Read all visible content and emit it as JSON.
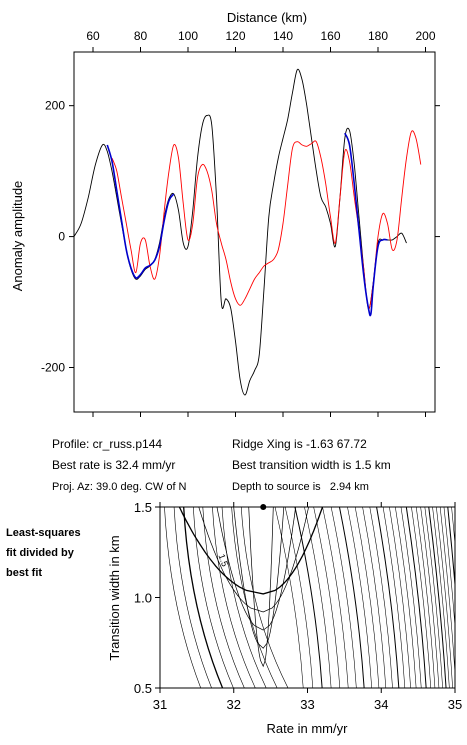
{
  "chart_data": [
    {
      "type": "line",
      "xlabel": "Distance (km)",
      "ylabel": "Anomaly amplitude",
      "xlim": [
        52,
        204
      ],
      "ylim": [
        -268,
        282
      ],
      "xticks": [
        60,
        80,
        100,
        120,
        140,
        160,
        180,
        200
      ],
      "yticks": [
        200,
        0,
        -200
      ],
      "grid": false,
      "series": [
        {
          "style": "observed",
          "color": "#000000",
          "x": [
            52,
            55,
            58,
            61,
            64,
            66,
            68,
            70,
            72,
            74,
            76,
            78,
            80,
            82,
            84,
            86,
            88,
            90,
            92,
            94,
            96,
            98,
            100,
            102,
            104,
            106,
            108,
            110,
            112,
            114,
            116,
            118,
            120,
            122,
            124,
            126,
            128,
            130,
            132,
            134,
            136,
            138,
            140,
            142,
            144,
            146,
            148,
            150,
            152,
            154,
            156,
            158,
            160,
            162,
            164,
            166,
            168,
            170,
            172,
            174,
            176,
            178,
            180,
            182,
            184,
            186,
            188,
            190,
            192
          ],
          "y": [
            0,
            20,
            60,
            110,
            140,
            130,
            100,
            60,
            20,
            -20,
            -50,
            -65,
            -60,
            -50,
            -45,
            -35,
            -10,
            30,
            58,
            65,
            40,
            -10,
            -15,
            40,
            120,
            170,
            185,
            170,
            60,
            -100,
            -95,
            -110,
            -160,
            -220,
            -242,
            -220,
            -205,
            -180,
            -80,
            30,
            80,
            120,
            150,
            180,
            220,
            255,
            240,
            200,
            150,
            100,
            60,
            45,
            20,
            -15,
            60,
            150,
            162,
            110,
            30,
            -50,
            -110,
            -70,
            -10,
            -5,
            -5,
            -5,
            0,
            5,
            -10
          ]
        },
        {
          "style": "model",
          "color": "#ff0000",
          "x": [
            68,
            70,
            72,
            74,
            76,
            78,
            80,
            82,
            84,
            86,
            88,
            90,
            92,
            94,
            96,
            98,
            100,
            102,
            104,
            106,
            108,
            110,
            112,
            114,
            116,
            118,
            120,
            122,
            124,
            126,
            128,
            130,
            132,
            134,
            136,
            138,
            140,
            142,
            144,
            146,
            148,
            150,
            152,
            154,
            156,
            158,
            160,
            162,
            164,
            166,
            168,
            170,
            172,
            174,
            176,
            178,
            180,
            182,
            184,
            186,
            188,
            190,
            192,
            194,
            196,
            198
          ],
          "y": [
            120,
            100,
            60,
            20,
            -20,
            -55,
            -10,
            -5,
            -45,
            -65,
            -30,
            40,
            100,
            140,
            120,
            50,
            -5,
            20,
            90,
            110,
            100,
            70,
            20,
            -10,
            -35,
            -70,
            -95,
            -105,
            -95,
            -80,
            -65,
            -55,
            -45,
            -40,
            -35,
            -20,
            20,
            80,
            135,
            145,
            140,
            138,
            142,
            145,
            120,
            80,
            30,
            -10,
            60,
            130,
            115,
            60,
            10,
            -50,
            -110,
            -70,
            0,
            35,
            20,
            -20,
            -5,
            60,
            120,
            160,
            150,
            110
          ]
        },
        {
          "style": "fitted",
          "color": "#0000cc",
          "x": [
            66,
            68,
            70,
            72,
            74,
            76,
            78,
            80,
            82,
            84,
            86,
            88,
            90,
            92,
            94
          ],
          "y": [
            140,
            115,
            70,
            25,
            -20,
            -48,
            -63,
            -58,
            -48,
            -44,
            -36,
            -15,
            25,
            55,
            65
          ]
        },
        {
          "style": "fitted",
          "color": "#0000cc",
          "x": [
            166,
            168,
            170,
            172,
            174,
            176,
            177,
            178,
            180,
            182,
            184
          ],
          "y": [
            158,
            140,
            80,
            10,
            -60,
            -110,
            -118,
            -75,
            -15,
            -5,
            -5
          ]
        }
      ]
    },
    {
      "type": "contour",
      "xlabel": "Rate in mm/yr",
      "ylabel": "Transition width in km",
      "xlim": [
        31,
        35
      ],
      "ylim": [
        0.5,
        1.5
      ],
      "xticks": [
        31,
        32,
        33,
        34,
        35
      ],
      "yticks": [
        0.5,
        1.0,
        1.5
      ],
      "contour_label": "1.5",
      "best_fit": {
        "x": 32.4,
        "y": 1.5
      }
    }
  ],
  "info": {
    "profile": "Profile: cr_russ.p144",
    "best_rate": "Best rate is 32.4 mm/yr",
    "proj_az": "Proj. Az: 39.0 deg. CW of N",
    "ridge_xing": "Ridge Xing is -1.63 67.72",
    "best_width": "Best transition width is 1.5 km",
    "depth": "Depth to source is   2.94 km"
  },
  "caption": [
    "Least-squares",
    "fit divided by",
    "best fit"
  ]
}
